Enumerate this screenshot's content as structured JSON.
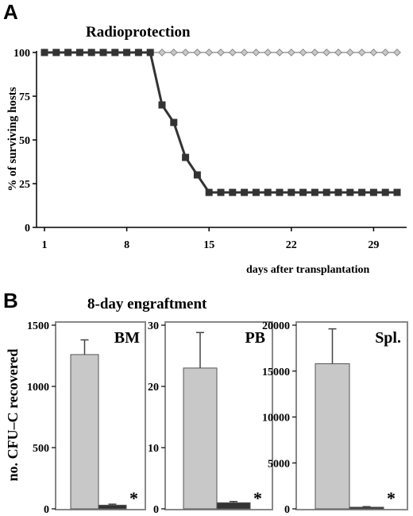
{
  "panel_a": {
    "letter": "A",
    "title": "Radioprotection",
    "ylabel": "% of surviving hosts",
    "xlabel": "days after transplantation"
  },
  "panel_b": {
    "letter": "B",
    "title": "8-day engraftment",
    "ylabel": "no. CFU–C recovered",
    "significance_mark": "*"
  },
  "colors": {
    "dark_series": "#333333",
    "light_series_fill": "#c8c8c8",
    "light_series_stroke": "#888888",
    "bar_light": "#c8c8c8",
    "bar_dark": "#333333",
    "box_border": "#888888"
  },
  "chart_data": [
    {
      "type": "line",
      "panel": "A",
      "title": "Radioprotection",
      "xlabel": "days after transplantation",
      "ylabel": "% of surviving hosts",
      "xlim": [
        1,
        31
      ],
      "ylim": [
        0,
        100
      ],
      "xticks": [
        1,
        8,
        15,
        22,
        29
      ],
      "yticks": [
        0,
        25,
        50,
        75,
        100
      ],
      "series": [
        {
          "marker": "diamond",
          "color": "#c8c8c8",
          "x": [
            1,
            2,
            3,
            4,
            5,
            6,
            7,
            8,
            9,
            10,
            11,
            12,
            13,
            14,
            15,
            16,
            17,
            18,
            19,
            20,
            21,
            22,
            23,
            24,
            25,
            26,
            27,
            28,
            29,
            30,
            31
          ],
          "y": [
            100,
            100,
            100,
            100,
            100,
            100,
            100,
            100,
            100,
            100,
            100,
            100,
            100,
            100,
            100,
            100,
            100,
            100,
            100,
            100,
            100,
            100,
            100,
            100,
            100,
            100,
            100,
            100,
            100,
            100,
            100
          ]
        },
        {
          "marker": "square",
          "color": "#333333",
          "x": [
            1,
            2,
            3,
            4,
            5,
            6,
            7,
            8,
            9,
            10,
            11,
            12,
            13,
            14,
            15,
            16,
            17,
            18,
            19,
            20,
            21,
            22,
            23,
            24,
            25,
            26,
            27,
            28,
            29,
            30,
            31
          ],
          "y": [
            100,
            100,
            100,
            100,
            100,
            100,
            100,
            100,
            100,
            100,
            70,
            60,
            40,
            30,
            20,
            20,
            20,
            20,
            20,
            20,
            20,
            20,
            20,
            20,
            20,
            20,
            20,
            20,
            20,
            20,
            20
          ]
        }
      ]
    },
    {
      "type": "bar",
      "panel": "B",
      "label": "BM",
      "ylim": [
        0,
        1500
      ],
      "yticks": [
        0,
        500,
        1000,
        1500
      ],
      "values": [
        1260,
        30
      ],
      "errors": [
        120,
        8
      ],
      "colors": [
        "#c8c8c8",
        "#333333"
      ],
      "significant": [
        false,
        true
      ]
    },
    {
      "type": "bar",
      "panel": "B",
      "label": "PB",
      "ylim": [
        0,
        30
      ],
      "yticks": [
        0,
        10,
        20,
        30
      ],
      "values": [
        23,
        1
      ],
      "errors": [
        5.8,
        0.2
      ],
      "colors": [
        "#c8c8c8",
        "#333333"
      ],
      "significant": [
        false,
        true
      ]
    },
    {
      "type": "bar",
      "panel": "B",
      "label": "Spl.",
      "ylim": [
        0,
        20000
      ],
      "yticks": [
        0,
        5000,
        10000,
        15000,
        20000
      ],
      "values": [
        15800,
        180
      ],
      "errors": [
        3800,
        60
      ],
      "colors": [
        "#c8c8c8",
        "#333333"
      ],
      "significant": [
        false,
        true
      ]
    }
  ]
}
